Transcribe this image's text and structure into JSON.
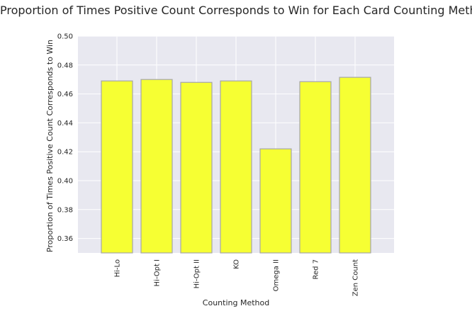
{
  "chart_data": {
    "type": "bar",
    "title": "Proportion of Times Positive Count Corresponds to Win for Each Card Counting Method",
    "xlabel": "Counting Method",
    "ylabel": "Proportion of Times Positive Count Corresponds to Win",
    "categories": [
      "Hi-Lo",
      "Hi-Opt I",
      "Hi-Opt II",
      "KO",
      "Omega II",
      "Red 7",
      "Zen Count"
    ],
    "values": [
      0.469,
      0.47,
      0.468,
      0.469,
      0.422,
      0.4685,
      0.4715
    ],
    "ylim": [
      0.35,
      0.5
    ],
    "yticks": [
      "0.36",
      "0.38",
      "0.40",
      "0.42",
      "0.44",
      "0.46",
      "0.48",
      "0.50"
    ],
    "grid": true,
    "colors": {
      "bar_fill": "#f6ff33",
      "bar_edge": "#a6a6a6",
      "plot_bg": "#e8e8f0",
      "grid": "#ffffff",
      "text": "#262626"
    }
  }
}
